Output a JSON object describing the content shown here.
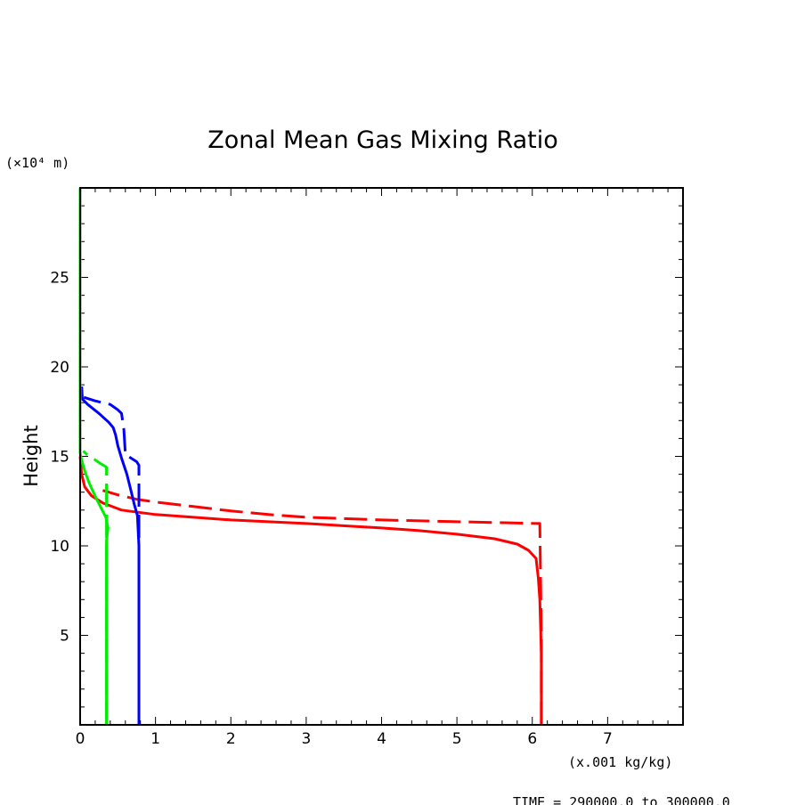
{
  "chart_data": {
    "type": "line",
    "title": "Zonal Mean Gas Mixing Ratio",
    "ylabel": "Height",
    "y_units": "(×10⁴ m)",
    "x_units": "(x.001 kg/kg)",
    "footer": "TIME = 290000.0 to 300000.0",
    "xlim": [
      0,
      8
    ],
    "ylim": [
      0,
      30
    ],
    "x_ticks": [
      "0",
      "1",
      "2",
      "3",
      "4",
      "5",
      "6",
      "7"
    ],
    "y_ticks": [
      "5",
      "10",
      "15",
      "20",
      "25"
    ],
    "grid": false,
    "series": [
      {
        "color": "#ff0000",
        "dash": "solid",
        "x": [
          6.12,
          6.12,
          6.1,
          6.08,
          6.05,
          5.95,
          5.8,
          5.5,
          5.0,
          4.5,
          4.0,
          3.0,
          2.0,
          1.0,
          0.55,
          0.3,
          0.15,
          0.06,
          0.02,
          0.0
        ],
        "y": [
          0.0,
          4.0,
          7.0,
          8.2,
          9.3,
          9.75,
          10.1,
          10.4,
          10.65,
          10.85,
          11.0,
          11.25,
          11.45,
          11.75,
          12.0,
          12.4,
          12.8,
          13.3,
          14.0,
          15.0
        ]
      },
      {
        "color": "#ff0000",
        "dash": "dashed",
        "x": [
          6.12,
          6.12,
          6.1,
          5.0,
          4.0,
          3.0,
          2.5,
          2.0,
          1.5,
          1.0,
          0.75,
          0.5,
          0.3
        ],
        "y": [
          0.0,
          5.0,
          11.25,
          11.35,
          11.45,
          11.6,
          11.75,
          11.95,
          12.2,
          12.45,
          12.6,
          12.85,
          13.1
        ]
      },
      {
        "color": "#0000ff",
        "dash": "solid",
        "x": [
          0.78,
          0.78,
          0.78,
          0.76,
          0.74,
          0.72,
          0.68,
          0.62,
          0.55,
          0.5,
          0.47,
          0.44,
          0.38,
          0.25,
          0.1,
          0.03,
          0.02
        ],
        "y": [
          0.0,
          5.0,
          10.0,
          11.7,
          12.0,
          12.3,
          13.0,
          14.0,
          14.9,
          15.6,
          16.2,
          16.6,
          16.9,
          17.4,
          17.9,
          18.2,
          18.9
        ]
      },
      {
        "color": "#0000ff",
        "dash": "dashed",
        "x": [
          0.78,
          0.78,
          0.78,
          0.75,
          0.6,
          0.58,
          0.55,
          0.5,
          0.4,
          0.2,
          0.05
        ],
        "y": [
          0.0,
          5.0,
          14.5,
          14.7,
          15.1,
          16.5,
          17.4,
          17.6,
          17.9,
          18.1,
          18.3
        ]
      },
      {
        "color": "#00ee00",
        "dash": "solid",
        "x": [
          0.35,
          0.35,
          0.35,
          0.37,
          0.34,
          0.22,
          0.12,
          0.06,
          0.02,
          0.0,
          0.0,
          0.0
        ],
        "y": [
          0.0,
          5.0,
          10.3,
          11.0,
          11.6,
          12.6,
          13.5,
          14.2,
          14.8,
          15.2,
          20.0,
          30.0
        ]
      },
      {
        "color": "#00ee00",
        "dash": "dashed",
        "x": [
          0.35,
          0.35,
          0.35,
          0.27,
          0.2,
          0.12,
          0.04
        ],
        "y": [
          0.0,
          5.0,
          14.4,
          14.6,
          14.8,
          15.0,
          15.3
        ]
      }
    ]
  }
}
